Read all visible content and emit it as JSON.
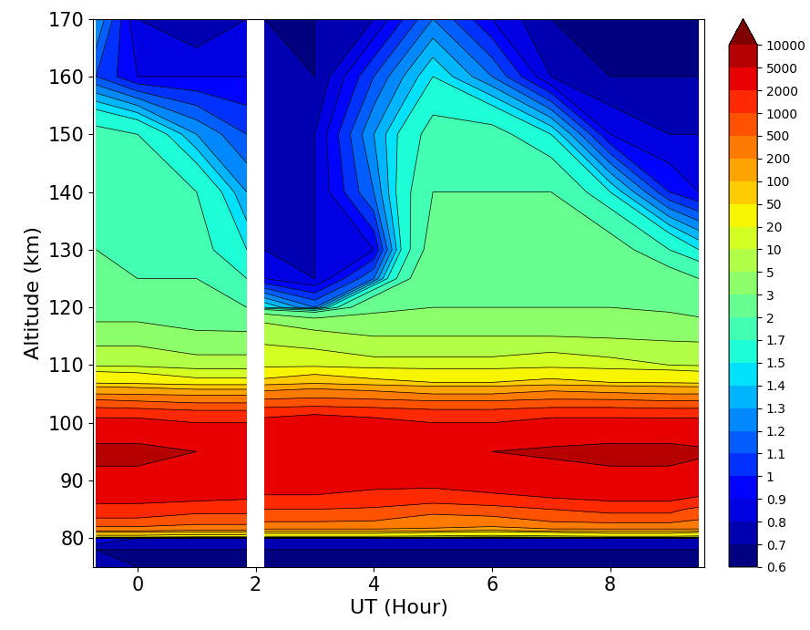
{
  "chart_data": {
    "type": "contour",
    "x_label": "UT (Hour)",
    "y_label": "Altitude (km)",
    "xlim": [
      -0.75,
      9.6
    ],
    "ylim": [
      75,
      170
    ],
    "xticks": [
      0,
      2,
      4,
      6,
      8
    ],
    "yticks": [
      80,
      90,
      100,
      110,
      120,
      130,
      140,
      150,
      160,
      170
    ],
    "x": [
      -0.7,
      0,
      1,
      1.85,
      2.0,
      2.15,
      3,
      4,
      5,
      6,
      7,
      8,
      9,
      9.5
    ],
    "y": [
      75,
      78,
      80,
      81,
      82,
      85,
      90,
      95,
      100,
      103,
      105,
      107,
      110,
      115,
      120,
      125,
      130,
      140,
      150,
      160,
      170
    ],
    "values": [
      [
        0.8,
        0.7,
        0.7,
        0.7,
        null,
        0.7,
        0.7,
        0.7,
        0.7,
        0.7,
        0.7,
        0.7,
        0.7,
        0.7
      ],
      [
        0.7,
        0.7,
        0.7,
        0.7,
        null,
        0.7,
        0.7,
        0.7,
        0.7,
        0.7,
        0.7,
        0.7,
        0.7,
        0.7
      ],
      [
        0.9,
        0.8,
        0.8,
        0.8,
        null,
        0.8,
        0.8,
        0.8,
        0.8,
        0.8,
        0.8,
        0.8,
        0.8,
        0.8
      ],
      [
        100,
        100,
        80,
        80,
        null,
        60,
        60,
        60,
        50,
        40,
        50,
        60,
        60,
        50
      ],
      [
        500,
        500,
        400,
        400,
        null,
        300,
        300,
        300,
        250,
        200,
        300,
        300,
        300,
        300
      ],
      [
        1500,
        1500,
        1200,
        1200,
        null,
        1000,
        1000,
        900,
        600,
        700,
        1000,
        1200,
        1200,
        800
      ],
      [
        4000,
        4000,
        4000,
        3500,
        null,
        3000,
        3000,
        2500,
        2500,
        3000,
        3500,
        4000,
        4000,
        3500
      ],
      [
        6000,
        6000,
        5000,
        5000,
        null,
        4500,
        4000,
        4000,
        4000,
        5000,
        5500,
        6000,
        6000,
        5500
      ],
      [
        2500,
        2500,
        2000,
        2000,
        null,
        2500,
        3000,
        2500,
        2000,
        2000,
        2500,
        2500,
        2500,
        2500
      ],
      [
        800,
        700,
        600,
        600,
        null,
        800,
        900,
        800,
        700,
        700,
        800,
        800,
        700,
        700
      ],
      [
        200,
        180,
        150,
        150,
        null,
        250,
        300,
        250,
        200,
        200,
        250,
        220,
        200,
        200
      ],
      [
        40,
        35,
        25,
        25,
        null,
        60,
        80,
        60,
        50,
        50,
        60,
        50,
        45,
        40
      ],
      [
        8,
        8,
        6,
        6,
        null,
        15,
        15,
        12,
        12,
        12,
        14,
        12,
        10,
        9
      ],
      [
        3.5,
        3.5,
        3.2,
        3.2,
        null,
        8,
        6,
        5,
        5,
        5,
        5,
        4.5,
        4,
        4
      ],
      [
        2.5,
        2.5,
        2.2,
        2,
        null,
        1.5,
        1.2,
        2.5,
        3,
        3,
        3,
        3,
        2.8,
        2.5
      ],
      [
        2.2,
        2,
        2,
        1.7,
        null,
        0.9,
        0.8,
        1.2,
        2.5,
        2.5,
        2.5,
        2.4,
        2.2,
        2
      ],
      [
        2,
        2,
        1.8,
        1.5,
        null,
        0.8,
        0.8,
        0.9,
        2.2,
        2.2,
        2.2,
        2.2,
        1.7,
        1.5
      ],
      [
        2,
        2,
        1.7,
        1.3,
        null,
        0.8,
        0.8,
        1.2,
        2,
        2,
        2,
        1.5,
        1,
        0.9
      ],
      [
        1.8,
        1.7,
        1.3,
        1.1,
        null,
        0.8,
        0.8,
        1.3,
        1.8,
        1.8,
        1.5,
        0.9,
        0.8,
        0.8
      ],
      [
        1.1,
        0.9,
        0.9,
        0.9,
        null,
        0.8,
        0.7,
        1.1,
        1.5,
        1.2,
        0.8,
        0.7,
        0.7,
        0.7
      ],
      [
        1.3,
        0.8,
        0.7,
        0.8,
        null,
        0.7,
        0.7,
        0.8,
        1.2,
        0.9,
        0.7,
        0.7,
        0.7,
        0.7
      ]
    ],
    "colorbar_levels": [
      0.6,
      0.7,
      0.8,
      0.9,
      1,
      1.1,
      1.2,
      1.3,
      1.4,
      1.5,
      1.7,
      2,
      3,
      5,
      10,
      20,
      50,
      100,
      200,
      500,
      1000,
      2000,
      5000,
      10000
    ],
    "colorbar_ticks": [
      0.6,
      0.7,
      0.8,
      0.9,
      1,
      1.1,
      1.2,
      1.3,
      1.4,
      1.5,
      1.7,
      2,
      3,
      5,
      10,
      20,
      50,
      100,
      200,
      500,
      1000,
      2000,
      5000,
      10000
    ]
  }
}
